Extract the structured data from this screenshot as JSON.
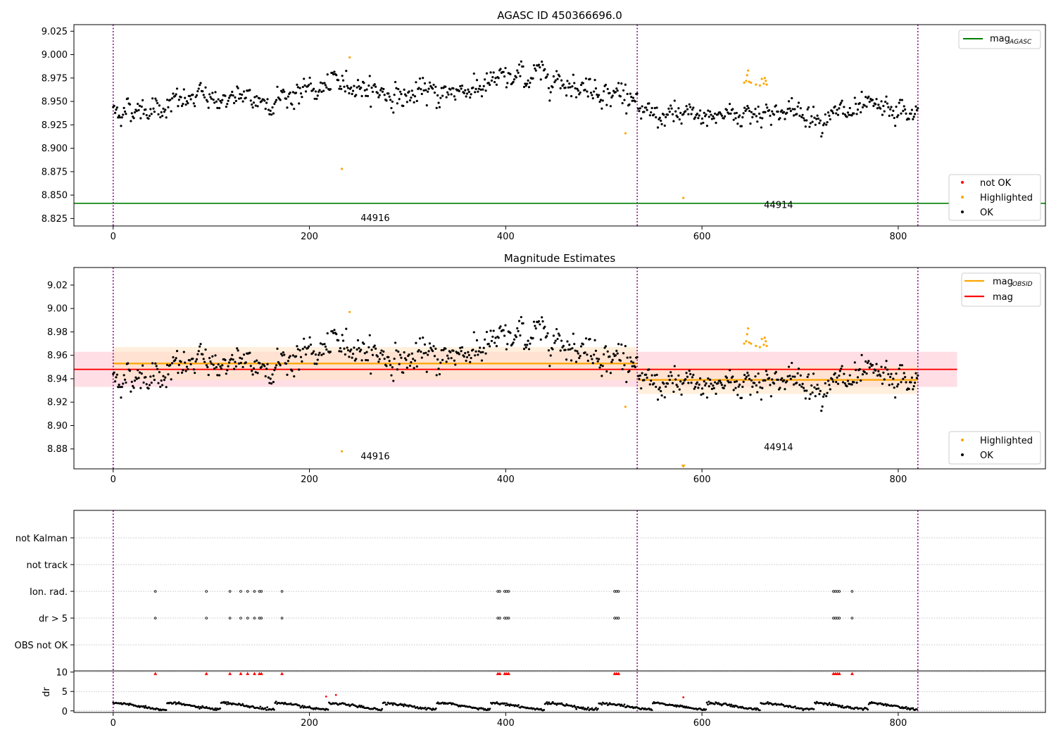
{
  "colors": {
    "ok": "#000000",
    "highlighted": "#ffa500",
    "not_ok": "#ff0000",
    "agasc_line": "#008000",
    "obsid_line": "#ffa500",
    "mag_line": "#ff0000",
    "obsid_band": "#ffe4c4",
    "mag_band": "#ffc0cb",
    "obs_boundary": "#800080",
    "grid": "#b0b0b0"
  },
  "chart_data": [
    {
      "type": "scatter",
      "title": "AGASC ID 450366696.0",
      "xlim": [
        -40,
        950
      ],
      "ylim": [
        8.817,
        9.032
      ],
      "xticks": [
        0,
        200,
        400,
        600,
        800
      ],
      "xtick_labels": [
        "0",
        "200",
        "400",
        "600",
        "800"
      ],
      "yticks": [
        8.825,
        8.85,
        8.875,
        8.9,
        8.925,
        8.95,
        8.975,
        9.0,
        9.025
      ],
      "ytick_labels": [
        "8.825",
        "8.850",
        "8.875",
        "8.900",
        "8.925",
        "8.950",
        "8.975",
        "9.000",
        "9.025"
      ],
      "obs_boundaries": [
        0,
        534,
        820
      ],
      "obs_labels": [
        {
          "text": "44916",
          "x": 267,
          "y": 8.826
        },
        {
          "text": "44914",
          "x": 678,
          "y": 8.84
        }
      ],
      "mag_agasc": 8.8412,
      "segments": [
        {
          "x0": 0,
          "x1": 534,
          "n": 534,
          "base": [
            8.94,
            8.945,
            8.955,
            8.95,
            8.96,
            8.97,
            8.955,
            8.96,
            8.97,
            8.98,
            8.965,
            8.955
          ],
          "noise": 0.0085
        },
        {
          "x0": 535,
          "x1": 820,
          "n": 285,
          "base": [
            8.935,
            8.932,
            8.935,
            8.94,
            8.938,
            8.935,
            8.94,
            8.935
          ],
          "noise": 0.0085
        }
      ],
      "highlighted_points": [
        {
          "x": 233,
          "y": 8.878
        },
        {
          "x": 241,
          "y": 8.997
        },
        {
          "x": 522,
          "y": 8.916
        },
        {
          "x": 581,
          "y": 8.847
        },
        {
          "x": 643,
          "y": 8.97
        },
        {
          "x": 645,
          "y": 8.972
        },
        {
          "x": 646,
          "y": 8.978
        },
        {
          "x": 647,
          "y": 8.983
        },
        {
          "x": 648,
          "y": 8.971
        },
        {
          "x": 650,
          "y": 8.97
        },
        {
          "x": 655,
          "y": 8.968
        },
        {
          "x": 659,
          "y": 8.967
        },
        {
          "x": 661,
          "y": 8.974
        },
        {
          "x": 663,
          "y": 8.969
        },
        {
          "x": 664,
          "y": 8.975
        },
        {
          "x": 665,
          "y": 8.972
        },
        {
          "x": 666,
          "y": 8.968
        }
      ],
      "legend_lines": [
        {
          "label": "mag",
          "sub": "AGASC",
          "color_key": "agasc_line"
        }
      ],
      "legend_points": [
        {
          "label": "not OK",
          "color_key": "not_ok"
        },
        {
          "label": "Highlighted",
          "color_key": "highlighted"
        },
        {
          "label": "OK",
          "color_key": "ok"
        }
      ],
      "legend_lines_loc": "upper right",
      "legend_points_loc": "lower right"
    },
    {
      "type": "scatter",
      "title": "Magnitude Estimates",
      "xlim": [
        -40,
        950
      ],
      "ylim": [
        8.863,
        9.035
      ],
      "xticks": [
        0,
        200,
        400,
        600,
        800
      ],
      "xtick_labels": [
        "0",
        "200",
        "400",
        "600",
        "800"
      ],
      "yticks": [
        8.88,
        8.9,
        8.92,
        8.94,
        8.96,
        8.98,
        9.0,
        9.02
      ],
      "ytick_labels": [
        "8.88",
        "8.90",
        "8.92",
        "8.94",
        "8.96",
        "8.98",
        "9.00",
        "9.02"
      ],
      "obs_boundaries": [
        0,
        534,
        820
      ],
      "obs_labels": [
        {
          "text": "44916",
          "x": 267,
          "y": 8.874
        },
        {
          "text": "44914",
          "x": 678,
          "y": 8.882
        }
      ],
      "mag": {
        "value": 8.948,
        "band": [
          8.933,
          8.963
        ],
        "x": [
          -40,
          860
        ]
      },
      "mag_obsid": [
        {
          "x0": 0,
          "x1": 534,
          "value": 8.953,
          "band": [
            8.939,
            8.967
          ]
        },
        {
          "x0": 535,
          "x1": 820,
          "value": 8.939,
          "band": [
            8.927,
            8.951
          ]
        }
      ],
      "off_scale_points": [
        {
          "x": 581
        }
      ],
      "legend_lines": [
        {
          "label": "mag",
          "sub": "OBSID",
          "color_key": "obsid_line"
        },
        {
          "label": "mag",
          "sub": "",
          "color_key": "mag_line"
        }
      ],
      "legend_points": [
        {
          "label": "Highlighted",
          "color_key": "highlighted"
        },
        {
          "label": "OK",
          "color_key": "ok"
        }
      ],
      "legend_lines_loc": "upper right",
      "legend_points_loc": "lower right"
    },
    {
      "type": "scatter",
      "xlim": [
        -40,
        950
      ],
      "flag_rows": [
        "not Kalman",
        "not track",
        "Ion. rad.",
        "dr > 5",
        "OBS not OK"
      ],
      "flag_events": [
        43,
        95,
        119,
        130,
        137,
        144,
        149,
        151,
        172,
        392,
        394,
        399,
        401,
        403,
        511,
        513,
        515,
        734,
        736,
        738,
        740,
        753
      ],
      "obs_boundaries": [
        0,
        534,
        820
      ],
      "dr_axis": {
        "label": "dr",
        "yticks": [
          0,
          5,
          10
        ],
        "ytick_labels": [
          "0",
          "5",
          "10"
        ],
        "ylim": [
          -0.4,
          10.3
        ]
      },
      "dr_outliers": [
        {
          "x": 217,
          "y": 3.7
        },
        {
          "x": 227,
          "y": 4.1
        },
        {
          "x": 581,
          "y": 3.5
        }
      ],
      "xticks": [
        0,
        200,
        400,
        600,
        800
      ],
      "xtick_labels": [
        "0",
        "200",
        "400",
        "600",
        "800"
      ]
    }
  ]
}
